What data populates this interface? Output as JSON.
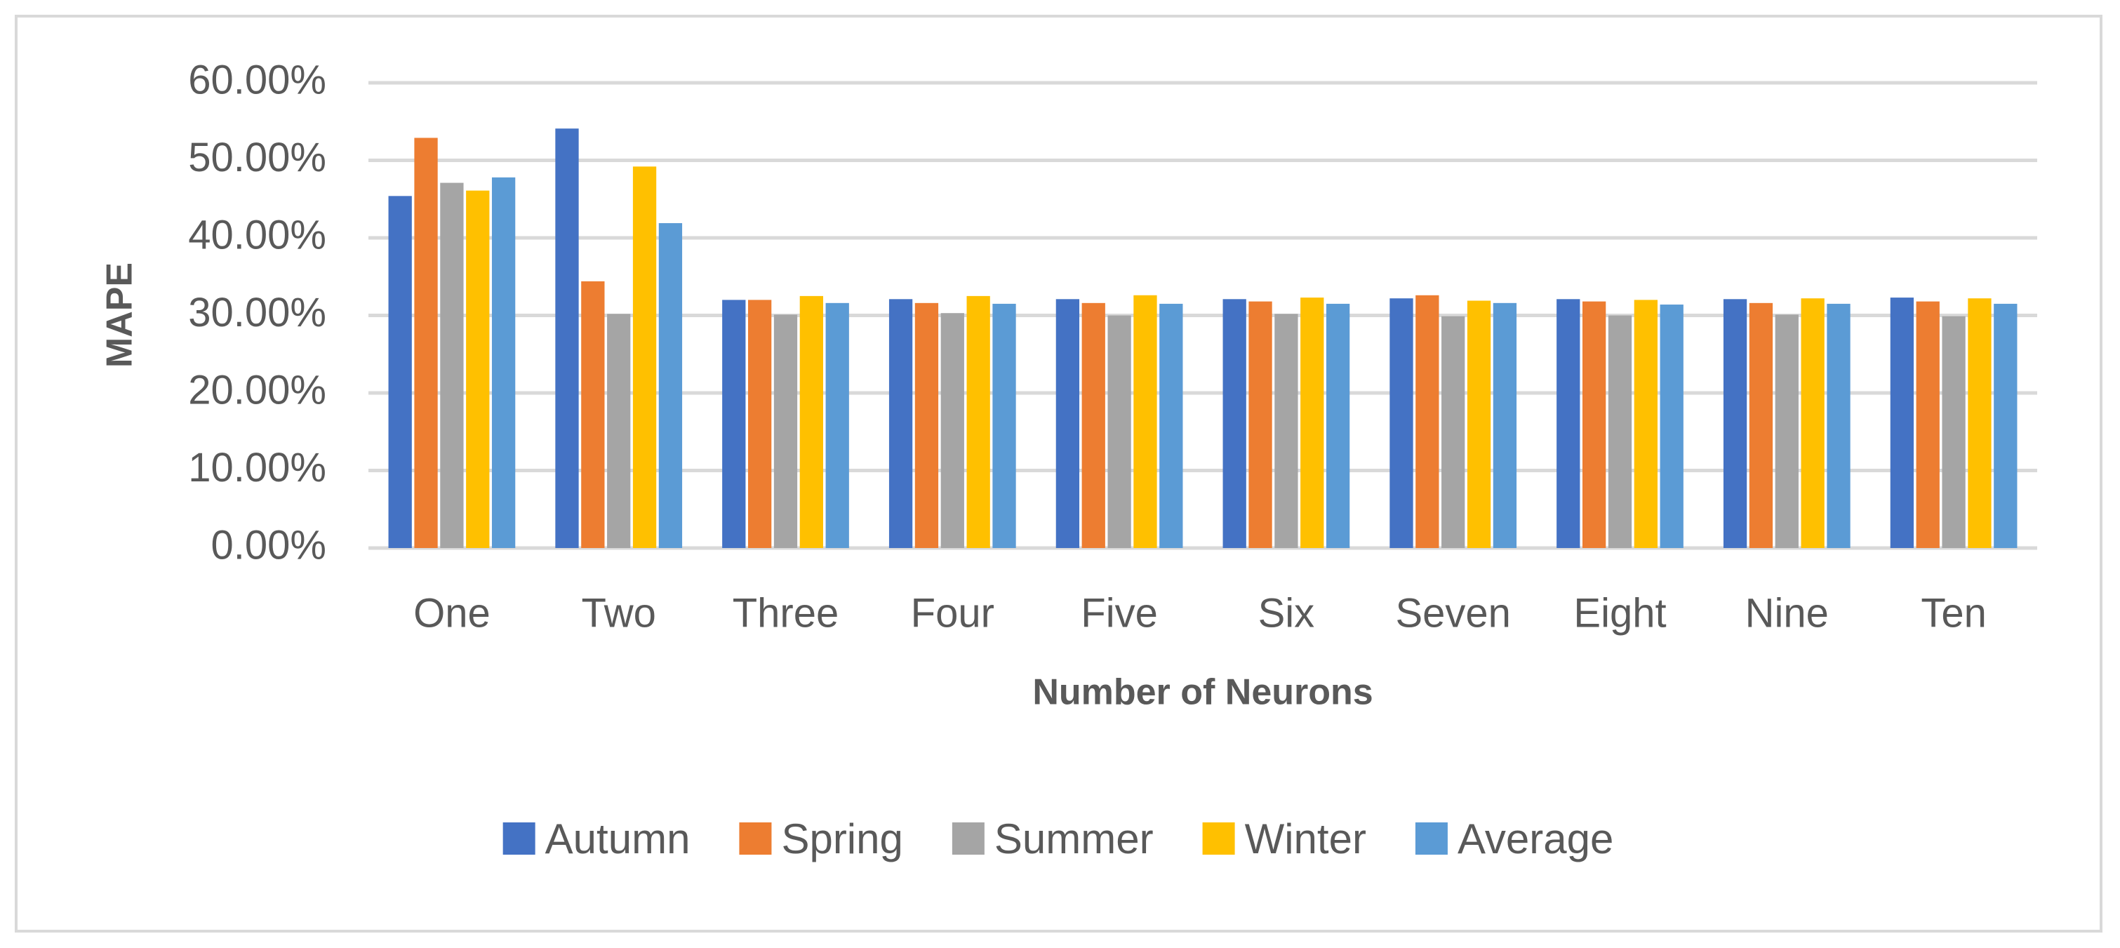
{
  "chart_data": {
    "type": "bar",
    "x_label": "Number of Neurons",
    "y_label": "MAPE",
    "categories": [
      "One",
      "Two",
      "Three",
      "Four",
      "Five",
      "Six",
      "Seven",
      "Eight",
      "Nine",
      "Ten"
    ],
    "series": [
      {
        "name": "Autumn",
        "color": "#4472c4",
        "values": [
          45.4,
          54.1,
          32.0,
          32.1,
          32.1,
          32.1,
          32.2,
          32.1,
          32.1,
          32.3
        ]
      },
      {
        "name": "Spring",
        "color": "#ed7d31",
        "values": [
          52.9,
          34.4,
          32.0,
          31.6,
          31.6,
          31.8,
          32.6,
          31.8,
          31.6,
          31.8
        ]
      },
      {
        "name": "Summer",
        "color": "#a5a5a5",
        "values": [
          47.1,
          30.2,
          30.1,
          30.3,
          30.0,
          30.2,
          29.9,
          30.0,
          30.1,
          29.9
        ]
      },
      {
        "name": "Winter",
        "color": "#ffc000",
        "values": [
          46.1,
          49.2,
          32.5,
          32.5,
          32.6,
          32.3,
          31.9,
          32.0,
          32.2,
          32.2
        ]
      },
      {
        "name": "Average",
        "color": "#5b9bd5",
        "values": [
          47.8,
          41.9,
          31.6,
          31.5,
          31.5,
          31.5,
          31.6,
          31.4,
          31.5,
          31.5
        ]
      }
    ],
    "ylim": [
      0,
      60
    ],
    "yticks": [
      {
        "value": 0,
        "label": "0.00%"
      },
      {
        "value": 10,
        "label": "10.00%"
      },
      {
        "value": 20,
        "label": "20.00%"
      },
      {
        "value": 30,
        "label": "30.00%"
      },
      {
        "value": 40,
        "label": "40.00%"
      },
      {
        "value": 50,
        "label": "50.00%"
      },
      {
        "value": 60,
        "label": "60.00%"
      }
    ],
    "grid": true,
    "legend": "bottom"
  }
}
